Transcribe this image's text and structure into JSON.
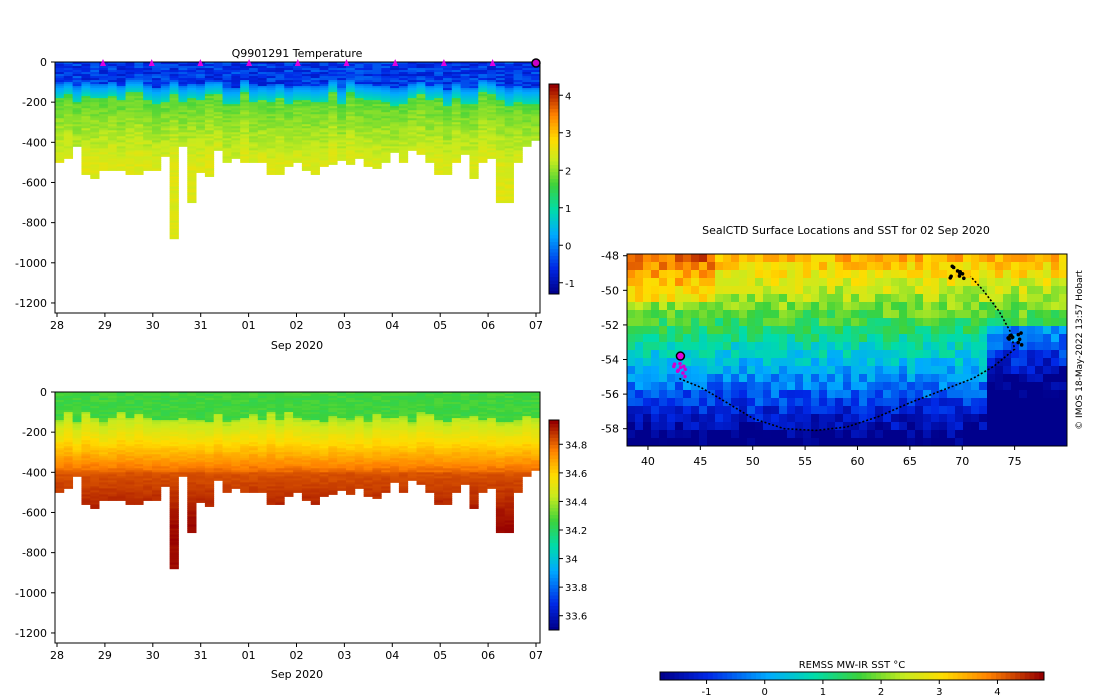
{
  "chart_data": [
    {
      "type": "heatmap",
      "id": "temp",
      "title": "Q9901291  Temperature",
      "xlabel": "Sep 2020",
      "ylabel": "",
      "x_ticks": [
        "28",
        "29",
        "30",
        "31",
        "01",
        "02",
        "03",
        "04",
        "05",
        "06",
        "07"
      ],
      "y_ticks": [
        0,
        -200,
        -400,
        -600,
        -800,
        -1000,
        -1200
      ],
      "ylim": [
        -1250,
        0
      ],
      "colorbar": {
        "ticks": [
          -1,
          0,
          1,
          2,
          3,
          4
        ],
        "range": [
          -1.3,
          4.3
        ]
      },
      "profile_depths_m": [
        500,
        480,
        420,
        560,
        580,
        540,
        540,
        540,
        560,
        560,
        540,
        540,
        470,
        880,
        420,
        700,
        550,
        570,
        440,
        500,
        480,
        500,
        500,
        500,
        560,
        560,
        520,
        500,
        540,
        560,
        520,
        510,
        490,
        510,
        480,
        520,
        530,
        500,
        450,
        500,
        440,
        460,
        500,
        560,
        560,
        500,
        460,
        580,
        500,
        480,
        700,
        700,
        500,
        420,
        390
      ],
      "profile_ticks": [
        "29",
        "30",
        "31",
        "01",
        "02",
        "03",
        "04",
        "05",
        "06",
        "07"
      ]
    },
    {
      "type": "heatmap",
      "id": "salinity",
      "title": "",
      "xlabel": "Sep 2020",
      "ylabel": "",
      "x_ticks": [
        "28",
        "29",
        "30",
        "31",
        "01",
        "02",
        "03",
        "04",
        "05",
        "06",
        "07"
      ],
      "y_ticks": [
        0,
        -200,
        -400,
        -600,
        -800,
        -1000,
        -1200
      ],
      "ylim": [
        -1250,
        0
      ],
      "colorbar": {
        "ticks": [
          33.6,
          33.8,
          34,
          34.2,
          34.4,
          34.6,
          34.8
        ],
        "range": [
          33.5,
          34.97
        ]
      }
    },
    {
      "type": "map",
      "id": "sst",
      "title": "SealCTD Surface Locations and SST for 02 Sep 2020",
      "x_ticks": [
        40,
        45,
        50,
        55,
        60,
        65,
        70,
        75
      ],
      "y_ticks": [
        -48,
        -50,
        -52,
        -54,
        -56,
        -58
      ],
      "xlim": [
        38,
        80
      ],
      "ylim": [
        -59,
        -47.9
      ],
      "colorbar": {
        "label": "REMSS MW-IR SST °C",
        "ticks": [
          -1,
          0,
          1,
          2,
          3,
          4
        ],
        "range": [
          -1.8,
          4.8
        ]
      },
      "track": [
        [
          43,
          -55.1
        ],
        [
          45,
          -55.6
        ],
        [
          47,
          -56.3
        ],
        [
          50,
          -57.4
        ],
        [
          53,
          -58
        ],
        [
          56,
          -58.1
        ],
        [
          59,
          -57.9
        ],
        [
          62,
          -57.3
        ],
        [
          65,
          -56.5
        ],
        [
          68,
          -55.8
        ],
        [
          71,
          -55.1
        ],
        [
          73,
          -54.4
        ],
        [
          75,
          -53.4
        ],
        [
          74.6,
          -52.4
        ],
        [
          73.5,
          -51.2
        ],
        [
          72,
          -50
        ],
        [
          70.8,
          -49.2
        ]
      ],
      "cluster_points": [
        [
          69.5,
          -49
        ],
        [
          75,
          -52.8
        ],
        [
          43,
          -54.6
        ]
      ],
      "current_position": [
        43.1,
        -53.8
      ]
    }
  ],
  "side_note": "© IMOS 18-May-2022 13:57 Hobart"
}
